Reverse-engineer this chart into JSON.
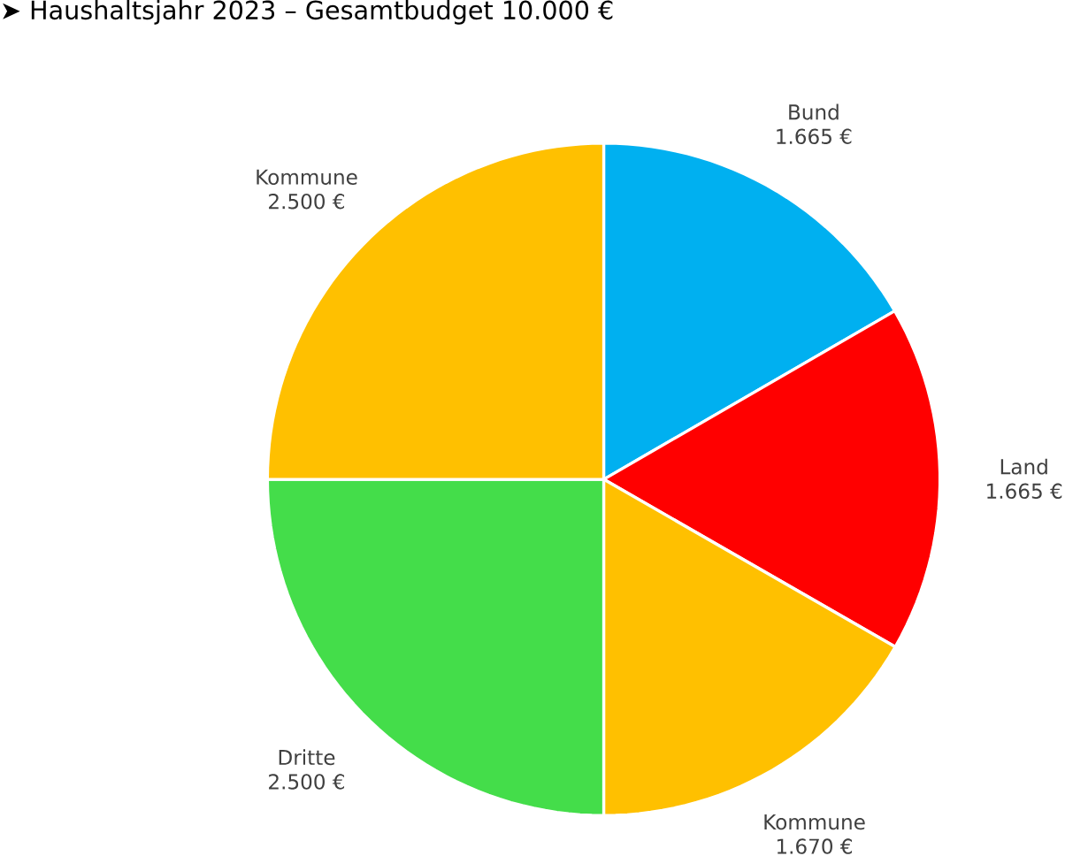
{
  "chart_data": {
    "type": "pie",
    "title": "➤ Haushaltsjahr 2023 – Gesamtbudget 10.000 €",
    "categories": [
      "Bund",
      "Land",
      "Kommune",
      "Dritte",
      "Kommune"
    ],
    "values": [
      1665,
      1665,
      1670,
      2500,
      2500
    ],
    "colors": [
      "#00b0f0",
      "#ff0000",
      "#ffc000",
      "#44dd4a",
      "#ffc000"
    ],
    "value_labels": [
      "1.665 €",
      "1.665 €",
      "1.670 €",
      "2.500 €",
      "2.500 €"
    ]
  }
}
